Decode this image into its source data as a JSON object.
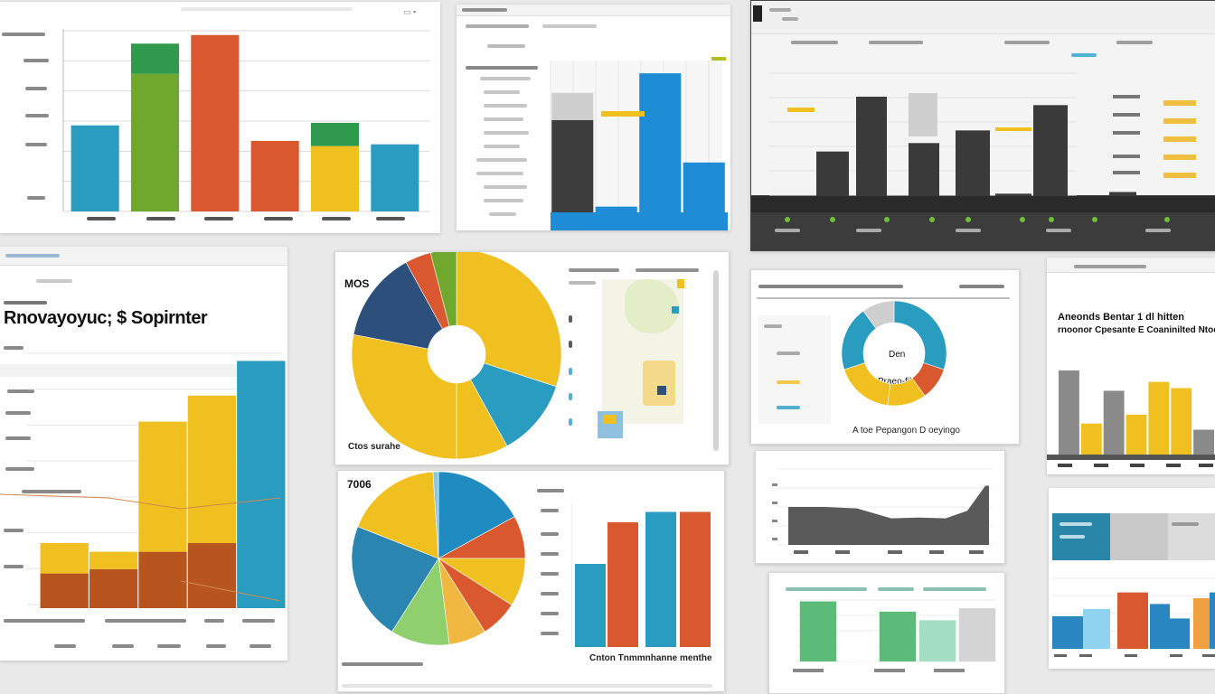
{
  "texts": {
    "panel4_title": "Rnovayoyuc; $ Sopirnter",
    "panel5_label": "MOS",
    "panel5_caption": "Ctos surahe",
    "panel6_label": "7006",
    "panel6_caption": "Cnton Tnmmnhanne menthe",
    "panel7_center_a": "Den",
    "panel7_center_b": "Praeo-fil",
    "panel7_caption": "A toe Pepangon D oeyingo",
    "panel8_title_a": "Aneonds Bentar 1 dl hitten",
    "panel8_title_b": "rnoonor Cpesante E Coaninilted Ntoe"
  },
  "colors": {
    "teal": "#2a9cc0",
    "green": "#6fa82c",
    "orange": "#d9582f",
    "yellow": "#f0c020",
    "dark_green": "#2f9a4e",
    "charcoal": "#3d3d3d",
    "navy": "#2c4f7c",
    "blue": "#1f8dd6",
    "brick": "#b8551e",
    "mint": "#5dbb7a"
  },
  "chart_data": [
    {
      "id": "panel1",
      "type": "bar",
      "values": [
        {
          "stack": [
            {
              "v": 100,
              "c": "teal"
            }
          ]
        },
        {
          "stack": [
            {
              "v": 160,
              "c": "green"
            },
            {
              "v": 35,
              "c": "dark_green"
            }
          ]
        },
        {
          "stack": [
            {
              "v": 205,
              "c": "orange"
            }
          ]
        },
        {
          "stack": [
            {
              "v": 82,
              "c": "orange"
            }
          ]
        },
        {
          "stack": [
            {
              "v": 76,
              "c": "yellow"
            },
            {
              "v": 27,
              "c": "dark_green"
            }
          ]
        },
        {
          "stack": [
            {
              "v": 78,
              "c": "teal"
            }
          ]
        }
      ],
      "ylim": [
        0,
        210
      ]
    },
    {
      "id": "panel2",
      "type": "bar",
      "values": [
        {
          "stack": [
            {
              "v": 130,
              "c": "charcoal"
            },
            {
              "v": 32,
              "c": "#cfcfcf"
            }
          ]
        },
        {
          "stack": [
            {
              "v": 28,
              "c": "blue"
            }
          ]
        },
        {
          "stack": [
            {
              "v": 185,
              "c": "blue"
            }
          ]
        },
        {
          "stack": [
            {
              "v": 80,
              "c": "blue"
            }
          ]
        }
      ],
      "ylim": [
        0,
        200
      ]
    },
    {
      "id": "panel3",
      "type": "bar",
      "values": [
        70,
        135,
        80,
        95,
        125,
        20,
        18,
        22,
        16
      ],
      "ylim": [
        0,
        150
      ]
    },
    {
      "id": "panel4",
      "type": "bar",
      "values": [
        {
          "stack": [
            {
              "v": 40,
              "c": "brick"
            },
            {
              "v": 35,
              "c": "yellow"
            }
          ]
        },
        {
          "stack": [
            {
              "v": 45,
              "c": "brick"
            },
            {
              "v": 20,
              "c": "yellow"
            }
          ]
        },
        {
          "stack": [
            {
              "v": 65,
              "c": "brick"
            },
            {
              "v": 150,
              "c": "yellow"
            }
          ]
        },
        {
          "stack": [
            {
              "v": 75,
              "c": "brick"
            },
            {
              "v": 170,
              "c": "yellow"
            }
          ]
        },
        {
          "stack": [
            {
              "v": 285,
              "c": "teal"
            }
          ]
        }
      ],
      "ylim": [
        0,
        300
      ]
    },
    {
      "id": "panel5",
      "type": "pie",
      "values": [
        30,
        12,
        8,
        28,
        14,
        4,
        4
      ],
      "colors": [
        "yellow",
        "teal",
        "yellow",
        "yellow",
        "navy",
        "orange",
        "green"
      ]
    },
    {
      "id": "panel6",
      "type": "pie",
      "values": [
        17,
        8,
        9,
        7,
        7,
        11,
        22,
        18,
        1
      ],
      "colors": [
        "#1f8bc0",
        "orange",
        "yellow",
        "orange",
        "#f0b840",
        "#8fcf6e",
        "#2a86b0",
        "yellow",
        "#86c8e6"
      ]
    },
    {
      "id": "panel7",
      "type": "pie",
      "values": [
        30,
        10,
        12,
        18,
        20,
        10
      ],
      "colors": [
        "#2a9cc0",
        "orange",
        "yellow",
        "yellow",
        "#2a9cc0",
        "#cfcfcf"
      ]
    },
    {
      "id": "panel8",
      "type": "bar",
      "values": [
        {
          "stack": [
            {
              "v": 95,
              "c": "#8a8a8a"
            }
          ]
        },
        {
          "stack": [
            {
              "v": 35,
              "c": "yellow"
            }
          ]
        },
        {
          "stack": [
            {
              "v": 72,
              "c": "#8a8a8a"
            }
          ]
        },
        {
          "stack": [
            {
              "v": 45,
              "c": "yellow"
            }
          ]
        },
        {
          "stack": [
            {
              "v": 82,
              "c": "yellow"
            }
          ]
        },
        {
          "stack": [
            {
              "v": 75,
              "c": "yellow"
            }
          ]
        },
        {
          "stack": [
            {
              "v": 28,
              "c": "#8a8a8a"
            }
          ]
        }
      ],
      "ylim": [
        0,
        100
      ]
    },
    {
      "id": "panel9",
      "type": "bar",
      "values": [
        50,
        78,
        95
      ],
      "colors": [
        "teal",
        "orange",
        "teal",
        "orange"
      ],
      "series4": [
        40,
        60,
        65,
        65
      ]
    },
    {
      "id": "panel10",
      "type": "area",
      "values": [
        50,
        50,
        48,
        35,
        36,
        35,
        45,
        78,
        78
      ],
      "ylim": [
        0,
        100
      ]
    },
    {
      "id": "panel11",
      "type": "bar",
      "values": [
        {
          "stack": [
            {
              "v": 70,
              "c": "mint"
            }
          ]
        },
        {
          "stack": [
            {
              "v": 20,
              "c": "#ffffff"
            }
          ]
        },
        {
          "stack": [
            {
              "v": 58,
              "c": "mint"
            }
          ]
        },
        {
          "stack": [
            {
              "v": 48,
              "c": "#a3ddc4"
            }
          ]
        },
        {
          "stack": [
            {
              "v": 62,
              "c": "#d4d4d4"
            }
          ]
        }
      ],
      "ylim": [
        0,
        80
      ]
    },
    {
      "id": "panel12",
      "type": "bar",
      "values": [
        45,
        55,
        78,
        62,
        42,
        70,
        78,
        80
      ],
      "colors": [
        "#2a86c0",
        "#8fd3f0",
        "orange",
        "#2a86c0",
        "#2a86c0",
        "#f0a040",
        "#2a86c0",
        "#5cc0e0"
      ],
      "ylim": [
        0,
        100
      ]
    }
  ]
}
